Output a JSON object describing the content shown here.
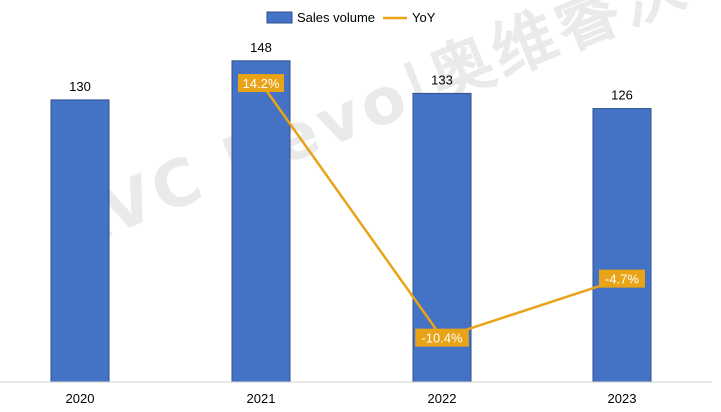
{
  "chart_data": {
    "type": "bar",
    "categories": [
      "2020",
      "2021",
      "2022",
      "2023"
    ],
    "series": [
      {
        "name": "Sales volume",
        "type": "bar",
        "values": [
          130,
          148,
          133,
          126
        ],
        "color": "#4472C4",
        "labels": [
          "130",
          "148",
          "133",
          "126"
        ]
      },
      {
        "name": "YoY",
        "type": "line",
        "values": [
          null,
          14.2,
          -10.4,
          -4.7
        ],
        "color": "#E8A317",
        "labels": [
          "",
          "14.2%",
          "-10.4%",
          "-4.7%"
        ]
      }
    ],
    "legend_position": "top-center",
    "grid": false
  },
  "watermark": "AVC Revo|奥维睿沃"
}
